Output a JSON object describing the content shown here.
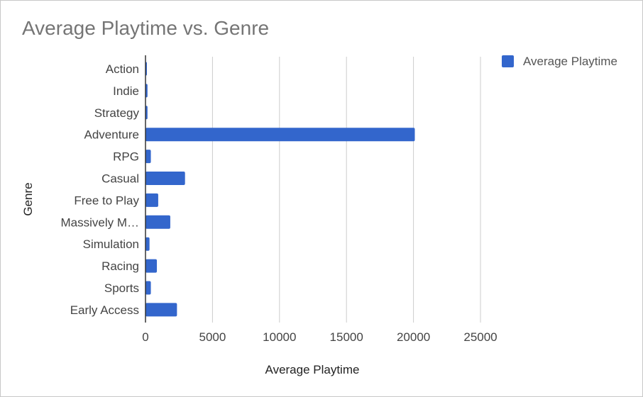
{
  "chart_data": {
    "type": "bar",
    "orientation": "horizontal",
    "title": "Average Playtime vs. Genre",
    "xlabel": "Average Playtime",
    "ylabel": "Genre",
    "categories": [
      "Action",
      "Indie",
      "Strategy",
      "Adventure",
      "RPG",
      "Casual",
      "Free to Play",
      "Massively M…",
      "Simulation",
      "Racing",
      "Sports",
      "Early Access"
    ],
    "series": [
      {
        "name": "Average Playtime",
        "color": "#3366cc",
        "values": [
          100,
          150,
          150,
          20100,
          400,
          2950,
          950,
          1850,
          300,
          850,
          400,
          2350
        ]
      }
    ],
    "xlim": [
      0,
      25000
    ],
    "xticks": [
      0,
      5000,
      10000,
      15000,
      20000,
      25000
    ],
    "grid": true,
    "legend_position": "top-right"
  }
}
